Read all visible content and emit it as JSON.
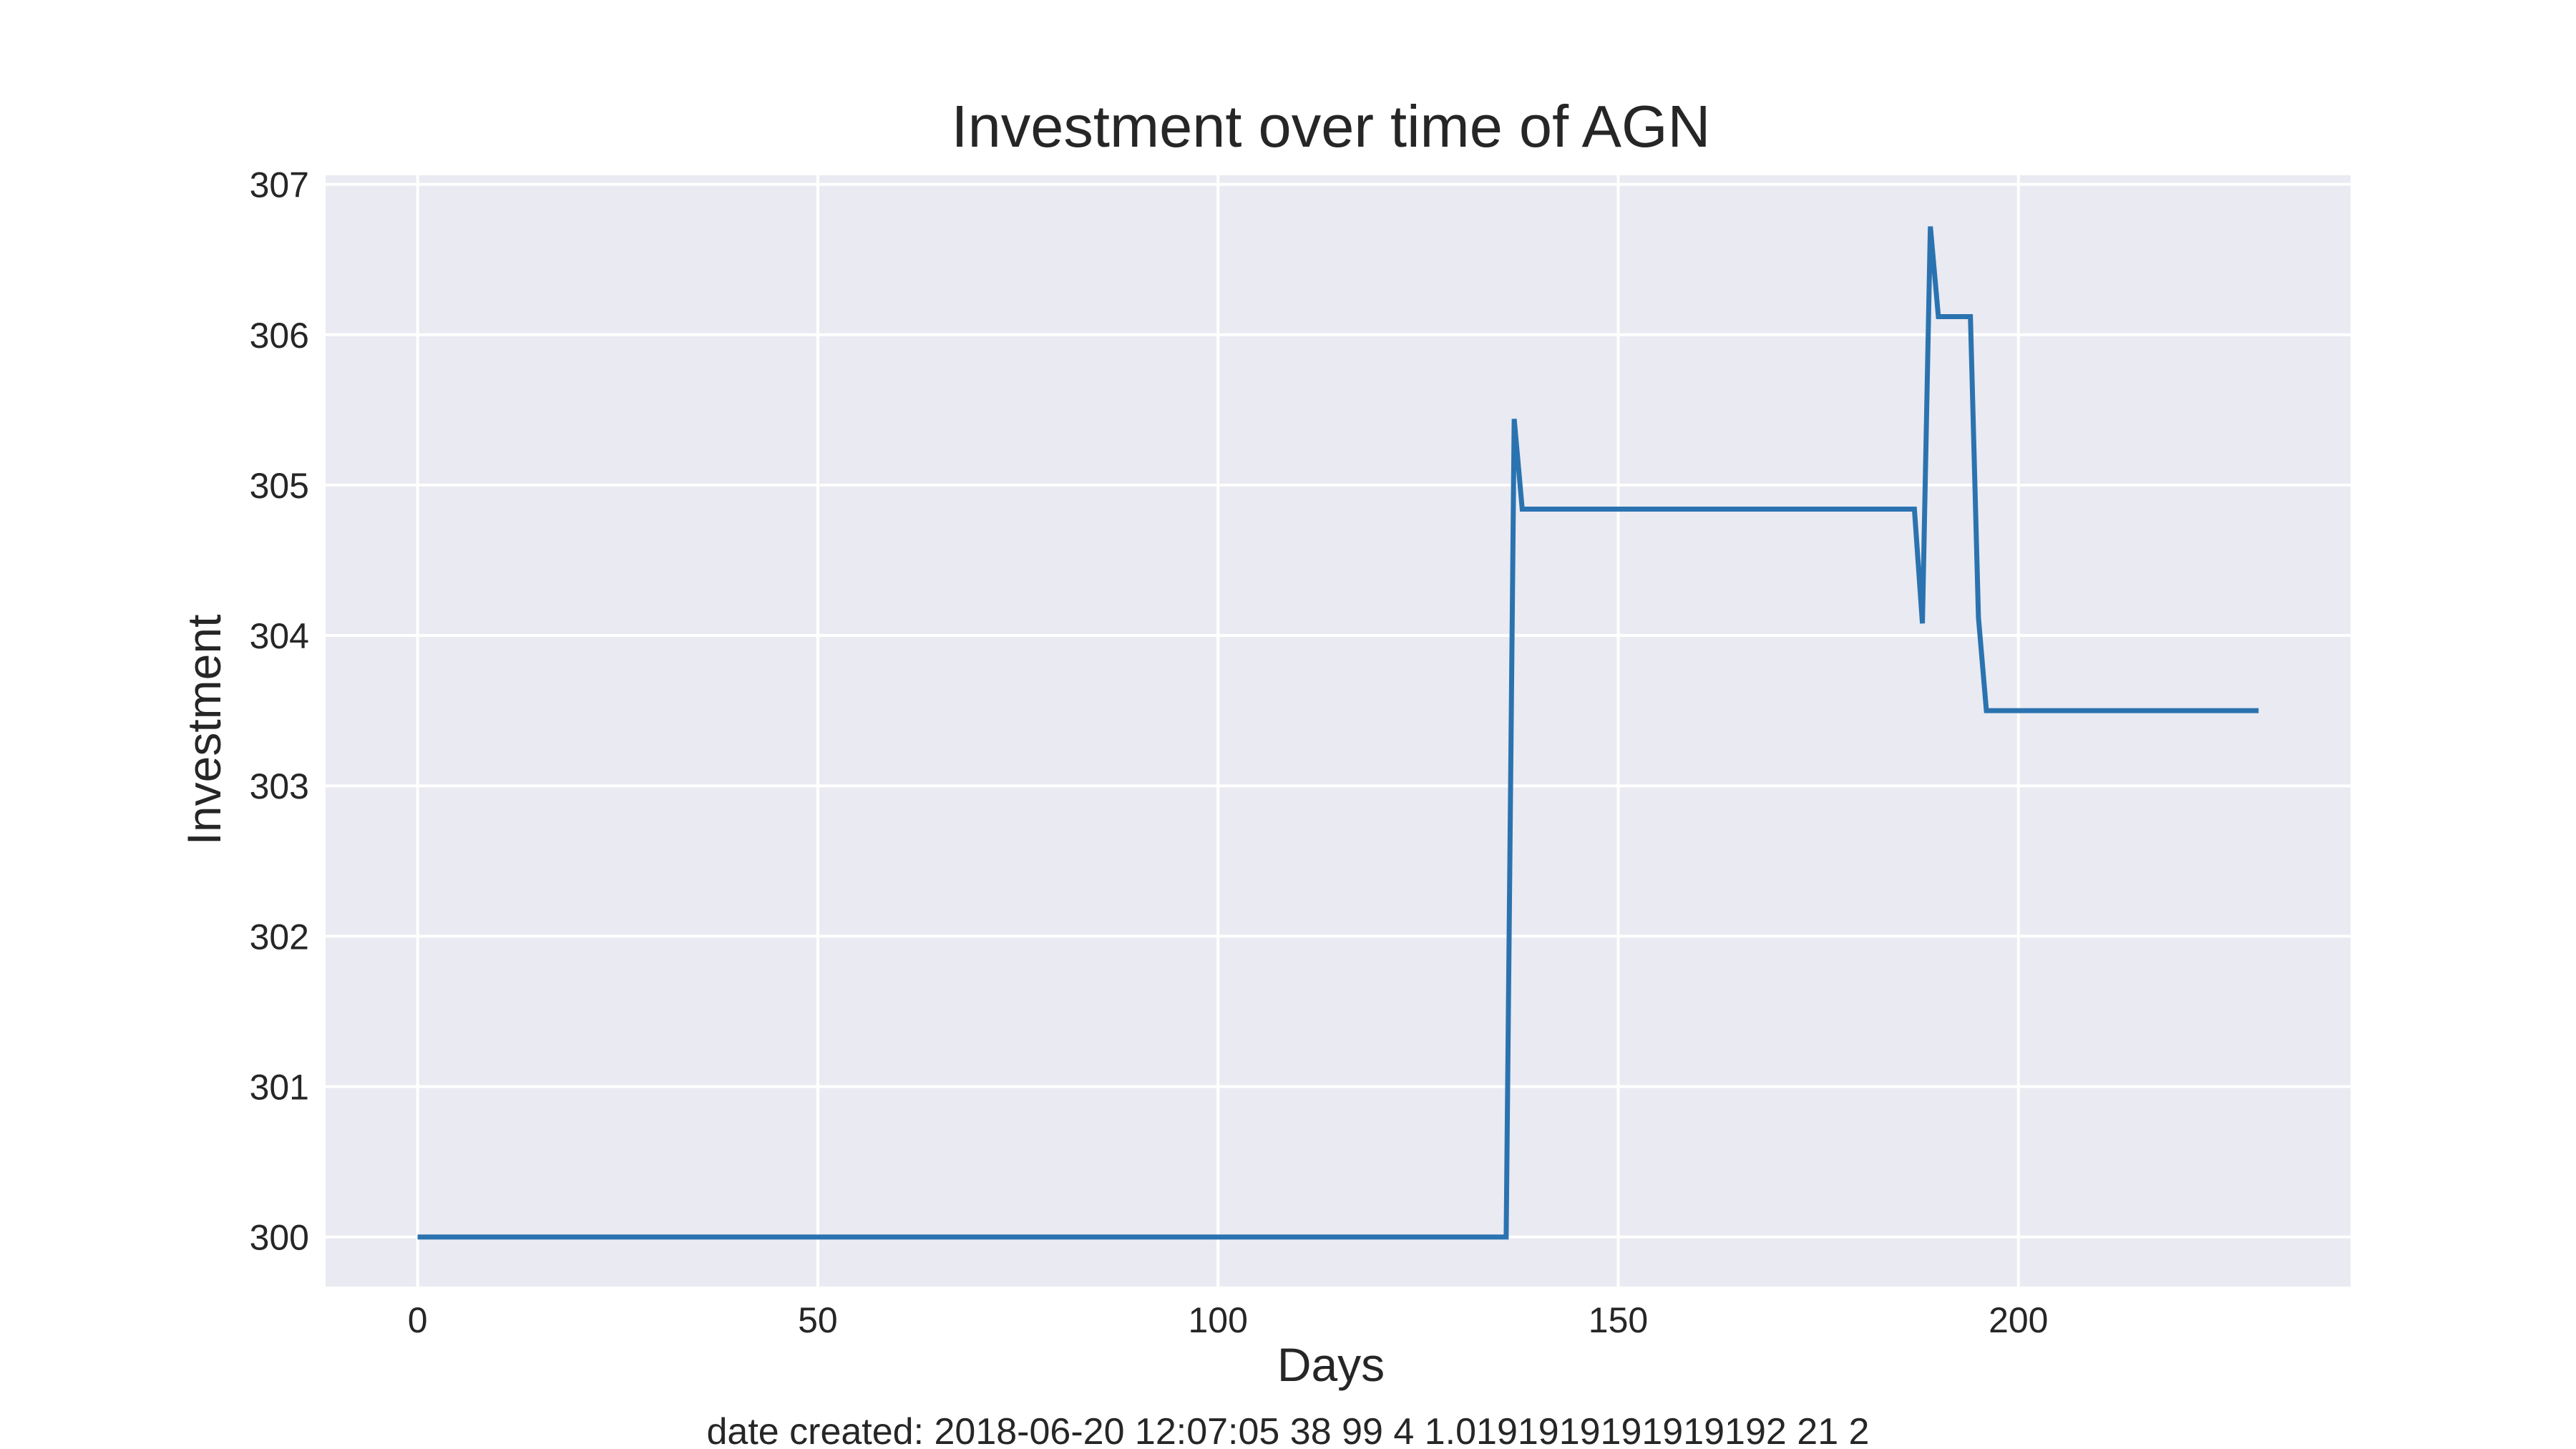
{
  "chart_data": {
    "type": "line",
    "title": "Investment over time of AGN",
    "xlabel": "Days",
    "ylabel": "Investment",
    "footer": "date created: 2018-06-20 12:07:05 38 99 4 1.0191919191919192 21 2",
    "xlim": [
      -11.5,
      241.5
    ],
    "ylim": [
      299.67,
      307.06
    ],
    "xticks": [
      0,
      50,
      100,
      150,
      200
    ],
    "yticks": [
      300,
      301,
      302,
      303,
      304,
      305,
      306,
      307
    ],
    "grid": true,
    "background": "#eaeaf2",
    "grid_color": "#ffffff",
    "series": [
      {
        "color": "#2b73b0",
        "points": [
          [
            0,
            300.0
          ],
          [
            136,
            300.0
          ],
          [
            137,
            305.44
          ],
          [
            138,
            304.84
          ],
          [
            187,
            304.84
          ],
          [
            188,
            304.08
          ],
          [
            189,
            306.72
          ],
          [
            190,
            306.12
          ],
          [
            194,
            306.12
          ],
          [
            195,
            304.12
          ],
          [
            196,
            303.5
          ],
          [
            230,
            303.5
          ]
        ]
      }
    ]
  }
}
